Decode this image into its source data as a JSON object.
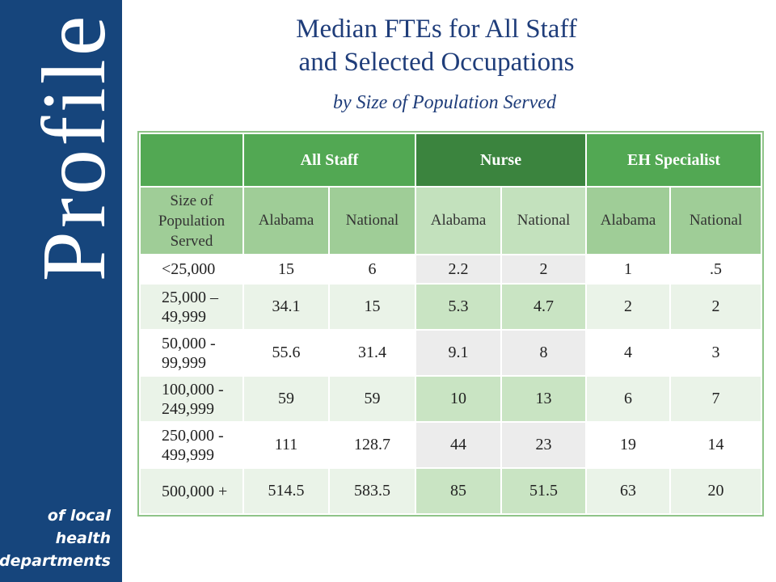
{
  "sidebar": {
    "brand": "Profile",
    "sub_lines": [
      "of local",
      "health",
      "departments"
    ]
  },
  "title_lines": [
    "Median FTEs for All Staff",
    "and Selected Occupations"
  ],
  "subtitle": "by Size of Population Served",
  "table": {
    "groups": [
      "",
      "All Staff",
      "Nurse",
      "EH Specialist"
    ],
    "size_header": [
      "Size of",
      "Population",
      "Served"
    ],
    "subheaders": [
      "Alabama",
      "National",
      "Alabama",
      "National",
      "Alabama",
      "National"
    ],
    "rows": [
      {
        "label": [
          "<25,000"
        ],
        "values": [
          "15",
          "6",
          "2.2",
          "2",
          "1",
          ".5"
        ]
      },
      {
        "label": [
          "25,000 –",
          "49,999"
        ],
        "values": [
          "34.1",
          "15",
          "5.3",
          "4.7",
          "2",
          "2"
        ]
      },
      {
        "label": [
          "50,000 -",
          "99,999"
        ],
        "values": [
          "55.6",
          "31.4",
          "9.1",
          "8",
          "4",
          "3"
        ]
      },
      {
        "label": [
          "100,000 -",
          "249,999"
        ],
        "values": [
          "59",
          "59",
          "10",
          "13",
          "6",
          "7"
        ]
      },
      {
        "label": [
          "250,000 -",
          "499,999"
        ],
        "values": [
          "111",
          "128.7",
          "44",
          "23",
          "19",
          "14"
        ]
      },
      {
        "label": [
          "500,000 +"
        ],
        "values": [
          "514.5",
          "583.5",
          "85",
          "51.5",
          "63",
          "20"
        ]
      }
    ]
  },
  "colors": {
    "sidebar": "#16457c",
    "title": "#1f3d7a",
    "header_green": "#52a853",
    "nurse_green": "#3b843e"
  }
}
